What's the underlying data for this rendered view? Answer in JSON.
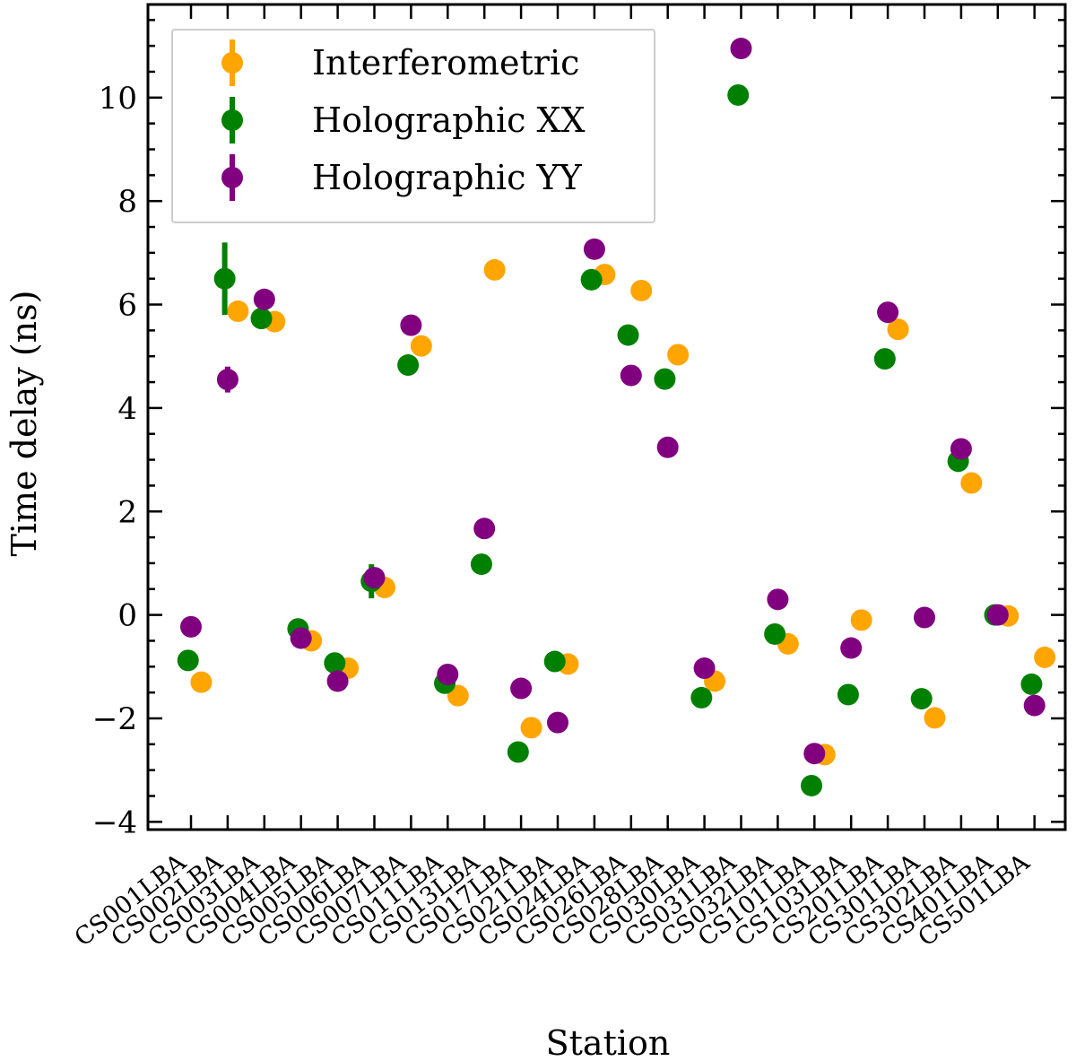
{
  "chart_data": {
    "type": "scatter",
    "title": "",
    "xlabel": "Station",
    "ylabel": "Time delay (ns)",
    "ylim": [
      -4.15,
      11.8
    ],
    "yticks": [
      -4,
      -2,
      0,
      2,
      4,
      6,
      8,
      10
    ],
    "ytick_labels": [
      "−4",
      "−2",
      "0",
      "2",
      "4",
      "6",
      "8",
      "10"
    ],
    "categories": [
      "CS001LBA",
      "CS002LBA",
      "CS003LBA",
      "CS004LBA",
      "CS005LBA",
      "CS006LBA",
      "CS007LBA",
      "CS011LBA",
      "CS013LBA",
      "CS017LBA",
      "CS021LBA",
      "CS024LBA",
      "CS026LBA",
      "CS028LBA",
      "CS030LBA",
      "CS031LBA",
      "CS032LBA",
      "CS101LBA",
      "CS103LBA",
      "CS201LBA",
      "CS301LBA",
      "CS302LBA",
      "CS401LBA",
      "CS501LBA"
    ],
    "legend_position": "top-left",
    "series": [
      {
        "name": "Interferometric",
        "color": "#ffa500",
        "offset": 0.28,
        "values": [
          -1.3,
          5.87,
          5.67,
          -0.5,
          -1.03,
          0.53,
          5.2,
          -1.56,
          6.67,
          -2.18,
          -0.95,
          6.58,
          6.27,
          5.03,
          -1.28,
          null,
          -0.56,
          -2.7,
          -0.1,
          5.52,
          -1.99,
          2.55,
          -0.02,
          -0.82
        ],
        "errors": [
          0,
          0,
          0,
          0,
          0,
          0,
          0,
          0,
          0,
          0,
          0,
          0,
          0,
          0,
          0,
          0,
          0,
          0,
          0,
          0,
          0,
          0,
          0,
          0
        ]
      },
      {
        "name": "Holographic XX",
        "color": "#008000",
        "offset": -0.08,
        "values": [
          -0.88,
          6.5,
          5.73,
          -0.27,
          -0.93,
          0.65,
          4.83,
          -1.32,
          0.98,
          -2.65,
          -0.9,
          6.48,
          5.41,
          4.56,
          -1.6,
          10.05,
          -0.37,
          -3.3,
          -1.54,
          4.95,
          -1.62,
          2.97,
          0.0,
          -1.34
        ],
        "errors": [
          0,
          0.7,
          0,
          0,
          0,
          0.33,
          0.2,
          0,
          0,
          0,
          0,
          0,
          0,
          0,
          0,
          0,
          0,
          0,
          0,
          0,
          0,
          0,
          0,
          0
        ]
      },
      {
        "name": "Holographic YY",
        "color": "#800080",
        "offset": 0.0,
        "values": [
          -0.23,
          4.55,
          6.1,
          -0.45,
          -1.28,
          0.72,
          5.6,
          -1.15,
          1.67,
          -1.42,
          -2.08,
          7.07,
          4.63,
          3.24,
          -1.03,
          10.95,
          0.3,
          -2.68,
          -0.64,
          5.85,
          -0.05,
          3.21,
          0.0,
          -1.75
        ],
        "errors": [
          0,
          0.25,
          0,
          0,
          0,
          0,
          0,
          0,
          0,
          0,
          0,
          0,
          0,
          0,
          0,
          0,
          0,
          0,
          0,
          0,
          0,
          0,
          0,
          0
        ]
      }
    ]
  }
}
